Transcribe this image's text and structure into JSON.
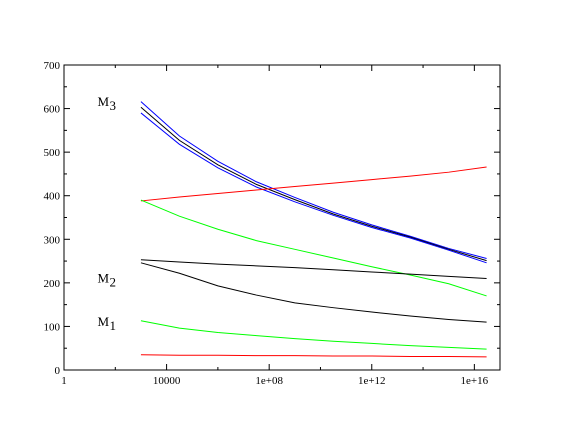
{
  "chart_data": {
    "type": "line",
    "title": "",
    "xlabel": "",
    "ylabel": "",
    "x_scale": "log10",
    "xlim": [
      1,
      1e+17
    ],
    "ylim": [
      0,
      700
    ],
    "grid": false,
    "legend": "none",
    "x_ticks": [
      {
        "value": 1,
        "label": "1"
      },
      {
        "value": 10000,
        "label": "10000"
      },
      {
        "value": 100000000.0,
        "label": "1e+08"
      },
      {
        "value": 1000000000000.0,
        "label": "1e+12"
      },
      {
        "value": 1e+16,
        "label": "1e+16"
      }
    ],
    "y_ticks": [
      {
        "value": 0,
        "label": "0"
      },
      {
        "value": 100,
        "label": "100"
      },
      {
        "value": 200,
        "label": "200"
      },
      {
        "value": 300,
        "label": "300"
      },
      {
        "value": 400,
        "label": "400"
      },
      {
        "value": 500,
        "label": "500"
      },
      {
        "value": 600,
        "label": "600"
      },
      {
        "value": 700,
        "label": "700"
      }
    ],
    "annotations": [
      {
        "main": "M",
        "sub": "3",
        "x": 300,
        "y": 615
      },
      {
        "main": "M",
        "sub": "2",
        "x": 300,
        "y": 210
      },
      {
        "main": "M",
        "sub": "1",
        "x": 300,
        "y": 110
      }
    ],
    "x": [
      1000,
      31623,
      1000000.0,
      31600000.0,
      1000000000.0,
      31600000000.0,
      1000000000000.0,
      31600000000000.0,
      1000000000000000.0,
      3e+16
    ],
    "series": [
      {
        "color": "#0000ff",
        "values": [
          616,
          537,
          479,
          432,
          396,
          362,
          333,
          307,
          279,
          256
        ]
      },
      {
        "color": "#000000",
        "values": [
          603,
          527,
          471,
          426,
          391,
          358,
          330,
          305,
          277,
          251
        ]
      },
      {
        "color": "#0000ff",
        "values": [
          590,
          518,
          464,
          420,
          386,
          355,
          327,
          303,
          275,
          246
        ]
      },
      {
        "color": "#ff0000",
        "values": [
          388,
          397,
          405,
          413,
          421,
          429,
          437,
          445,
          454,
          466
        ]
      },
      {
        "color": "#00ff00",
        "values": [
          390,
          353,
          323,
          297,
          277,
          257,
          237,
          218,
          198,
          170
        ]
      },
      {
        "color": "#000000",
        "values": [
          253,
          248,
          243,
          239,
          235,
          230,
          225,
          220,
          215,
          210
        ]
      },
      {
        "color": "#000000",
        "values": [
          246,
          222,
          193,
          172,
          154,
          143,
          133,
          124,
          116,
          110
        ]
      },
      {
        "color": "#00ff00",
        "values": [
          113,
          96,
          86,
          79,
          72,
          66,
          61,
          56,
          52,
          48
        ]
      },
      {
        "color": "#ff0000",
        "values": [
          35,
          34,
          34,
          33,
          33,
          32,
          32,
          31,
          31,
          30
        ]
      }
    ]
  }
}
